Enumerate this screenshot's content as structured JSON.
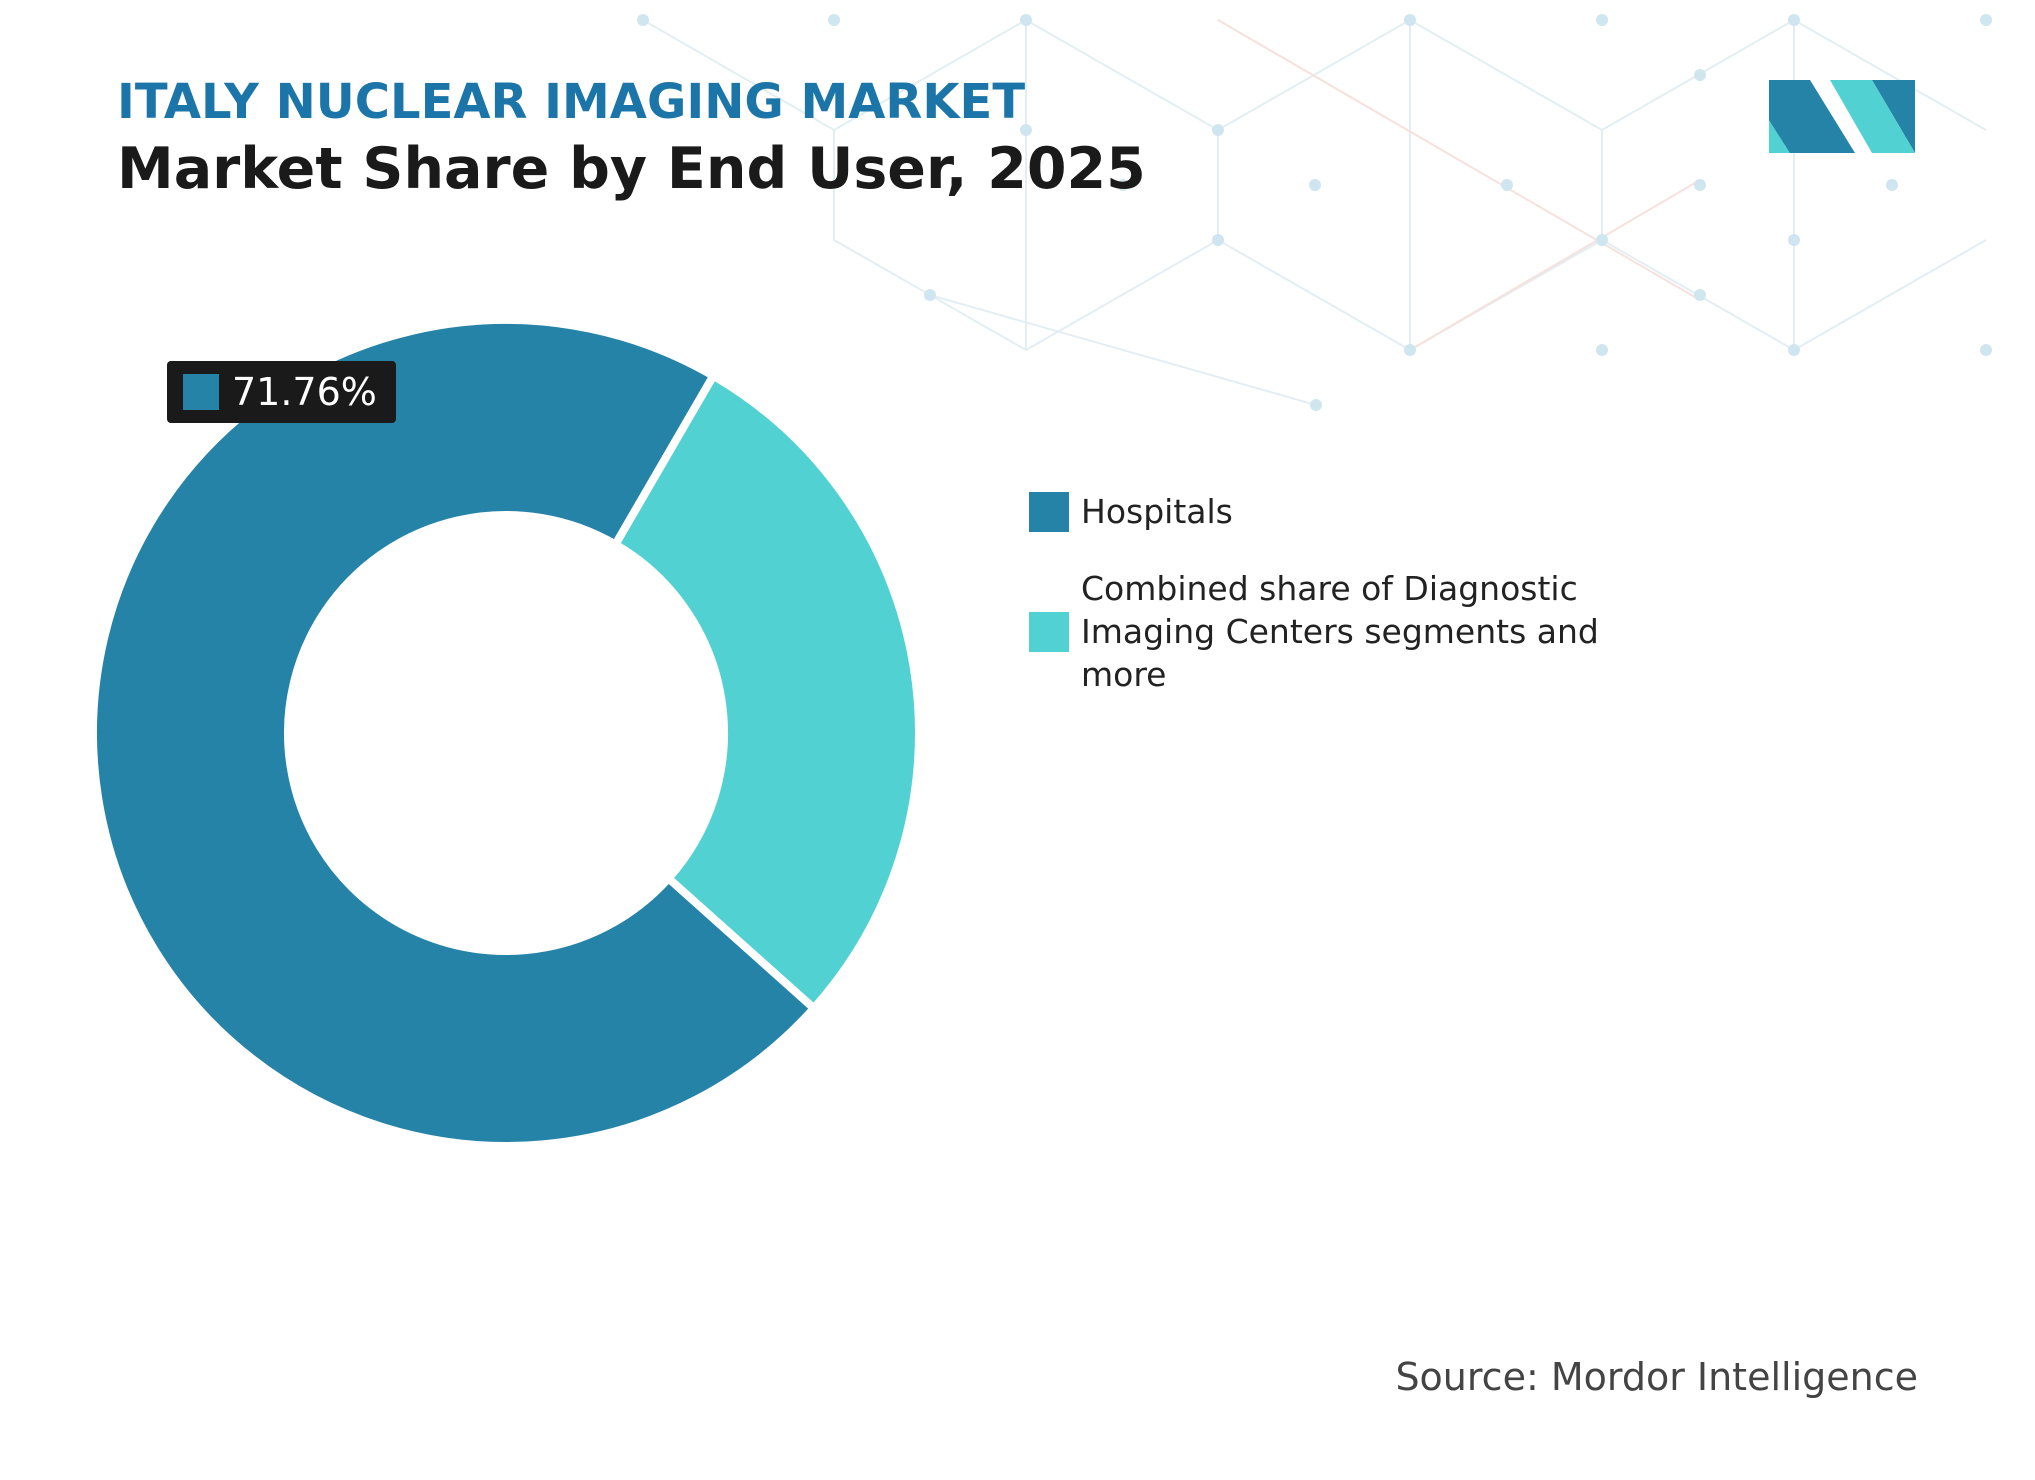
{
  "chart_data": {
    "type": "donut",
    "subtitle": "ITALY NUCLEAR IMAGING MARKET",
    "title": "Market Share by End User, 2025",
    "categories": [
      "Hospitals",
      "Combined share of Diagnostic Imaging Centers segments and more"
    ],
    "values": [
      71.76,
      28.24
    ],
    "value_labels": [
      "71.76%",
      null
    ],
    "colors": [
      "#2683a8",
      "#52d1d3"
    ],
    "source": "Source: Mordor Intelligence"
  }
}
